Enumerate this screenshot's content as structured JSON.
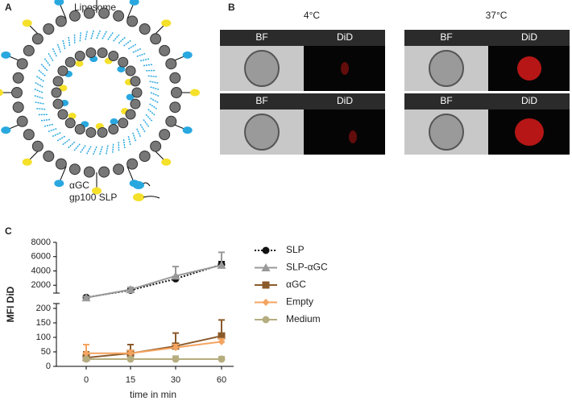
{
  "panel_a": {
    "label": "A",
    "title": "Liposome",
    "legend": [
      "αGC",
      "gp100 SLP"
    ]
  },
  "panel_b": {
    "label": "B",
    "groups": [
      {
        "title": "4°C",
        "tiles": [
          [
            "BF",
            "DiD"
          ],
          [
            "BF",
            "DiD"
          ]
        ]
      },
      {
        "title": "37°C",
        "tiles": [
          [
            "BF",
            "DiD"
          ],
          [
            "BF",
            "DiD"
          ]
        ]
      }
    ]
  },
  "panel_c": {
    "label": "C"
  },
  "chart_data": {
    "type": "line",
    "ylabel": "MFI  DiD",
    "xlabel": "time in min",
    "categories": [
      "0",
      "15",
      "30",
      "60"
    ],
    "ylim_upper": [
      0,
      8000
    ],
    "yticks_upper": [
      2000,
      4000,
      6000,
      8000
    ],
    "ylim": [
      0,
      200
    ],
    "yticks": [
      0,
      50,
      100,
      150,
      200
    ],
    "series": [
      {
        "name": "SLP",
        "color": "#111111",
        "marker": "circle",
        "dash": true,
        "section": "upper",
        "values": [
          300,
          1300,
          2900,
          4900
        ],
        "errors": [
          100,
          200,
          300,
          400
        ]
      },
      {
        "name": "SLP-αGC",
        "color": "#999999",
        "marker": "triangle",
        "section": "upper",
        "values": [
          250,
          1400,
          3300,
          4800
        ],
        "errors": [
          150,
          300,
          1300,
          1800
        ]
      },
      {
        "name": "αGC",
        "color": "#8b5a2b",
        "marker": "square",
        "section": "lower",
        "values": [
          30,
          45,
          70,
          105
        ],
        "errors": [
          20,
          30,
          45,
          55
        ]
      },
      {
        "name": "Empty",
        "color": "#f4a460",
        "marker": "diamond",
        "section": "lower",
        "values": [
          45,
          45,
          65,
          85
        ],
        "errors": [
          30,
          10,
          10,
          10
        ]
      },
      {
        "name": "Medium",
        "color": "#b5ad80",
        "marker": "circle",
        "section": "lower",
        "values": [
          25,
          25,
          25,
          25
        ],
        "errors": [
          5,
          5,
          10,
          8
        ]
      }
    ]
  }
}
